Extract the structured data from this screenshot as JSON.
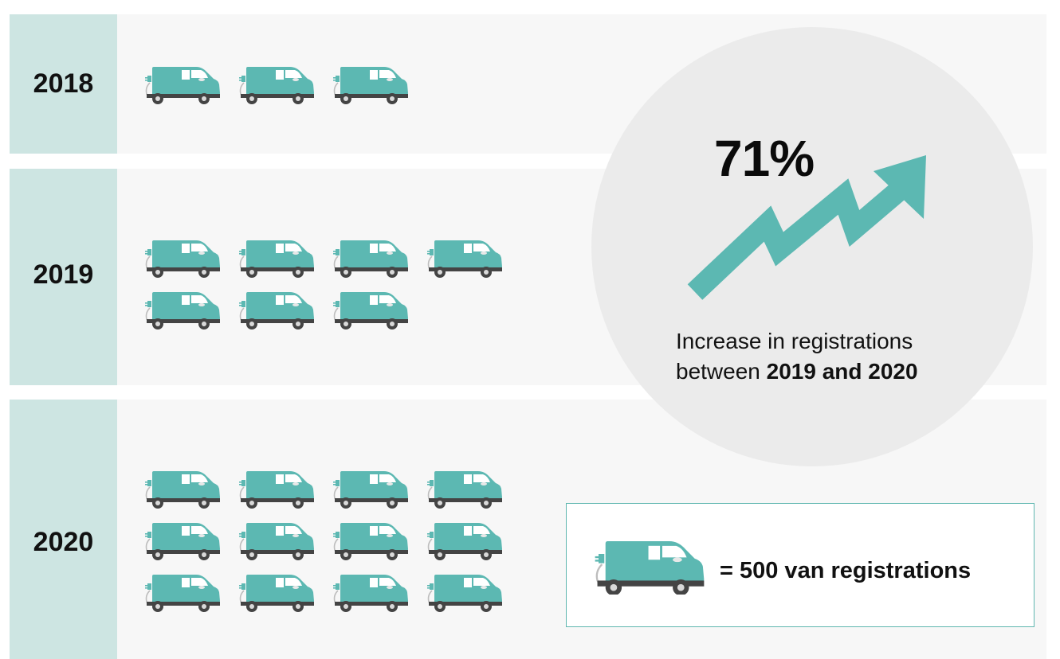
{
  "chart_data": {
    "type": "pictogram",
    "unit_label": "= 500 van registrations",
    "icon": "electric-van-icon",
    "unit_value": 500,
    "categories": [
      "2018",
      "2019",
      "2020"
    ],
    "values": [
      3,
      7,
      12
    ],
    "callout": {
      "value": "71%",
      "text_prefix": "Increase in registrations",
      "text_between": "between",
      "text_bold": "2019 and 2020"
    },
    "colors": {
      "van": "#5cb8b2",
      "year_column": "#cde5e2",
      "band": "#f7f7f7",
      "circle": "#ebebeb",
      "arrow": "#5cb8b2"
    }
  }
}
